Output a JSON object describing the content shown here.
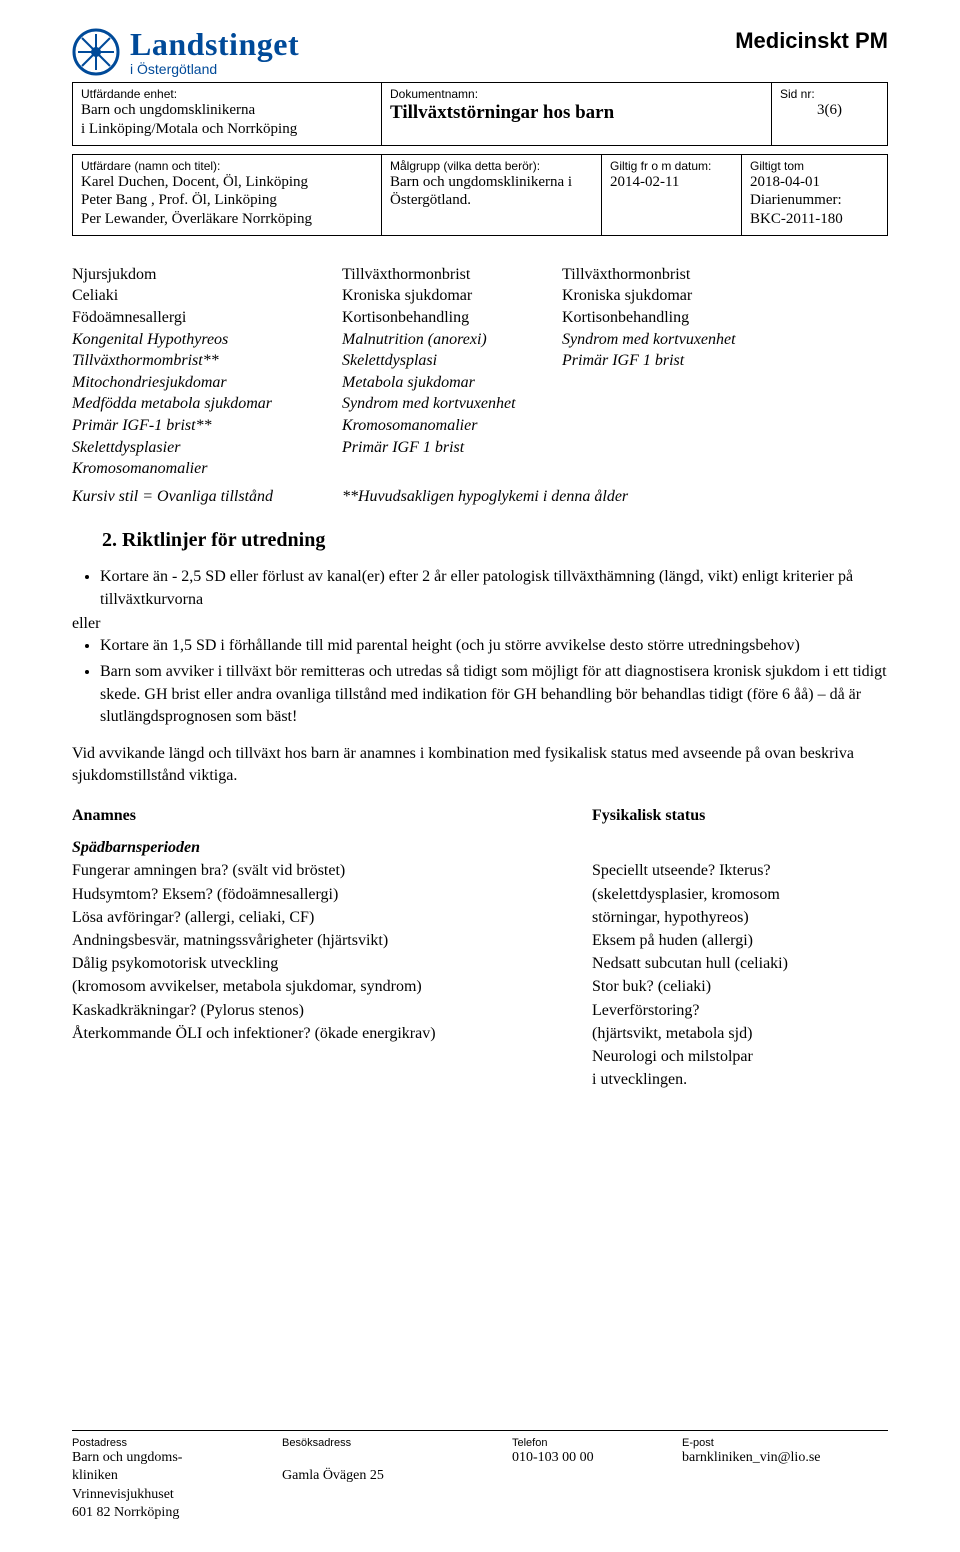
{
  "doc_type": "Medicinskt PM",
  "logo": {
    "brand": "Landstinget",
    "subtitle": "i Östergötland",
    "color": "#004a99"
  },
  "meta": {
    "issuing_label": "Utfärdande enhet:",
    "issuing_value": "Barn och ungdomsklinikerna\ni Linköping/Motala och Norrköping",
    "docname_label": "Dokumentnamn:",
    "docname_value": "Tillväxtstörningar hos barn",
    "page_label": "Sid nr:",
    "page_value": "3(6)",
    "author_label": "Utfärdare (namn och titel):",
    "author_value": "Karel Duchen, Docent, Öl, Linköping\nPeter Bang , Prof. Öl, Linköping\nPer Lewander, Överläkare Norrköping",
    "target_label": "Målgrupp (vilka detta berör):",
    "target_value": "Barn och ungdomsklinikerna i\nÖstergötland.",
    "valid_from_label": "Giltig fr o m datum:",
    "valid_from_value": "2014-02-11",
    "valid_to_label": "Giltigt tom",
    "valid_to_value": "2018-04-01\nDiarienummer:\nBKC-2011-180"
  },
  "table": {
    "colA": [
      {
        "t": "Njursjukdom"
      },
      {
        "t": "Celiaki"
      },
      {
        "t": "Födoämnesallergi"
      },
      {
        "t": "Kongenital Hypothyreos",
        "i": true
      },
      {
        "t": "Tillväxthormombrist**",
        "i": true
      },
      {
        "t": "Mitochondriesjukdomar",
        "i": true
      },
      {
        "t": "Medfödda metabola sjukdomar",
        "i": true
      },
      {
        "t": "Primär IGF-1 brist**",
        "i": true
      },
      {
        "t": "Skelettdysplasier",
        "i": true
      },
      {
        "t": "Kromosomanomalier",
        "i": true
      }
    ],
    "colB": [
      {
        "t": "Tillväxthormonbrist"
      },
      {
        "t": "Kroniska sjukdomar"
      },
      {
        "t": "Kortisonbehandling"
      },
      {
        "t": "Malnutrition (anorexi)",
        "i": true
      },
      {
        "t": "Skelettdysplasi",
        "i": true
      },
      {
        "t": "Metabola sjukdomar",
        "i": true
      },
      {
        "t": "Syndrom med kortvuxenhet",
        "i": true
      },
      {
        "t": "Kromosomanomalier",
        "i": true
      },
      {
        "t": "Primär IGF 1 brist",
        "i": true
      }
    ],
    "colC": [
      {
        "t": "Tillväxthormonbrist"
      },
      {
        "t": "Kroniska sjukdomar"
      },
      {
        "t": "Kortisonbehandling"
      },
      {
        "t": "Syndrom med kortvuxenhet",
        "i": true
      },
      {
        "t": "Primär IGF 1 brist",
        "i": true
      }
    ],
    "footnote_left": "Kursiv stil = Ovanliga tillstånd",
    "footnote_right": "**Huvudsakligen hypoglykemi i denna ålder"
  },
  "section_title": "2.  Riktlinjer för utredning",
  "bullets_top": [
    "Kortare än - 2,5 SD eller förlust av kanal(er) efter 2 år eller patologisk tillväxthämning (längd, vikt) enligt kriterier på tillväxtkurvorna"
  ],
  "or_word": "eller",
  "bullets_bottom": [
    "Kortare än 1,5 SD i förhållande till mid parental height (och ju större avvikelse desto större utredningsbehov)",
    "Barn som avviker i tillväxt bör remitteras och utredas så tidigt som möjligt för att diagnostisera kronisk sjukdom i ett tidigt skede. GH brist eller andra ovanliga tillstånd med indikation för GH behandling bör behandlas tidigt (före 6 åå) – då är slutlängdsprognosen som bäst!"
  ],
  "paragraph": "Vid avvikande längd och tillväxt hos barn är anamnes i kombination med fysikalisk status med avseende på ovan beskriva sjukdomstillstånd viktiga.",
  "anamnes_left": "Anamnes",
  "anamnes_right": "Fysikalisk status",
  "subhead": "Spädbarnsperioden",
  "anamnes_list_left": [
    "Fungerar amningen bra? (svält vid bröstet)",
    "Hudsymtom? Eksem? (födoämnesallergi)",
    "Lösa avföringar? (allergi, celiaki, CF)",
    "Andningsbesvär, matningssvårigheter (hjärtsvikt)",
    "Dålig psykomotorisk utveckling",
    "(kromosom avvikelser, metabola sjukdomar, syndrom)",
    "Kaskadkräkningar? (Pylorus stenos)",
    "Återkommande ÖLI och infektioner? (ökade energikrav)"
  ],
  "anamnes_list_right": [
    "Speciellt utseende? Ikterus?",
    "(skelettdysplasier, kromosom",
    "störningar, hypothyreos)",
    "Eksem på huden (allergi)",
    "Nedsatt subcutan hull (celiaki)",
    "Stor buk? (celiaki)",
    "Leverförstoring?",
    "(hjärtsvikt, metabola sjd)",
    "Neurologi och milstolpar",
    "i utvecklingen."
  ],
  "footer": {
    "post_label": "Postadress",
    "post_value": "Barn och ungdoms-\nkliniken\nVrinnevisjukhuset\n601 82 Norrköping",
    "visit_label": "Besöksadress",
    "visit_value": "\nGamla Övägen 25",
    "phone_label": "Telefon",
    "phone_value": "010-103 00 00",
    "email_label": "E-post",
    "email_value": "barnkliniken_vin@lio.se"
  }
}
